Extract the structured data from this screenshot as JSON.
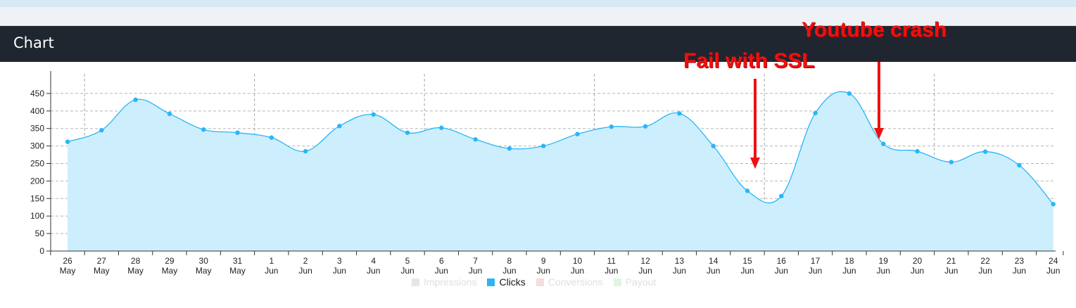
{
  "panel": {
    "title": "Chart"
  },
  "chart_data": {
    "type": "area",
    "categories": [
      {
        "day": "26",
        "month": "May"
      },
      {
        "day": "27",
        "month": "May"
      },
      {
        "day": "28",
        "month": "May"
      },
      {
        "day": "29",
        "month": "May"
      },
      {
        "day": "30",
        "month": "May"
      },
      {
        "day": "31",
        "month": "May"
      },
      {
        "day": "1",
        "month": "Jun"
      },
      {
        "day": "2",
        "month": "Jun"
      },
      {
        "day": "3",
        "month": "Jun"
      },
      {
        "day": "4",
        "month": "Jun"
      },
      {
        "day": "5",
        "month": "Jun"
      },
      {
        "day": "6",
        "month": "Jun"
      },
      {
        "day": "7",
        "month": "Jun"
      },
      {
        "day": "8",
        "month": "Jun"
      },
      {
        "day": "9",
        "month": "Jun"
      },
      {
        "day": "10",
        "month": "Jun"
      },
      {
        "day": "11",
        "month": "Jun"
      },
      {
        "day": "12",
        "month": "Jun"
      },
      {
        "day": "13",
        "month": "Jun"
      },
      {
        "day": "14",
        "month": "Jun"
      },
      {
        "day": "15",
        "month": "Jun"
      },
      {
        "day": "16",
        "month": "Jun"
      },
      {
        "day": "17",
        "month": "Jun"
      },
      {
        "day": "18",
        "month": "Jun"
      },
      {
        "day": "19",
        "month": "Jun"
      },
      {
        "day": "20",
        "month": "Jun"
      },
      {
        "day": "21",
        "month": "Jun"
      },
      {
        "day": "22",
        "month": "Jun"
      },
      {
        "day": "23",
        "month": "Jun"
      },
      {
        "day": "24",
        "month": "Jun"
      }
    ],
    "series": [
      {
        "name": "Clicks",
        "color": "#29b6f6",
        "values": [
          312,
          345,
          432,
          392,
          347,
          338,
          324,
          285,
          357,
          390,
          338,
          352,
          319,
          293,
          300,
          334,
          355,
          356,
          393,
          300,
          172,
          157,
          394,
          450,
          306,
          285,
          254,
          284,
          245,
          134
        ]
      }
    ],
    "yticks": [
      0,
      50,
      100,
      150,
      200,
      250,
      300,
      350,
      400,
      450
    ],
    "ylim": [
      0,
      490
    ],
    "grid": true,
    "legend": {
      "position": "bottom-center",
      "items": [
        {
          "label": "Impressions",
          "active": false,
          "color": "#e6e6e6"
        },
        {
          "label": "Clicks",
          "active": true,
          "color": "#29b6f6"
        },
        {
          "label": "Conversions",
          "active": false,
          "color": "#f5dede"
        },
        {
          "label": "Payout",
          "active": false,
          "color": "#e2f5e2"
        }
      ]
    },
    "annotations": [
      {
        "text": "Fail with SSL",
        "target_category": "15 Jun",
        "color": "#ee1111"
      },
      {
        "text": "Youtube crash",
        "target_category": "19 Jun",
        "color": "#ee1111"
      }
    ]
  }
}
